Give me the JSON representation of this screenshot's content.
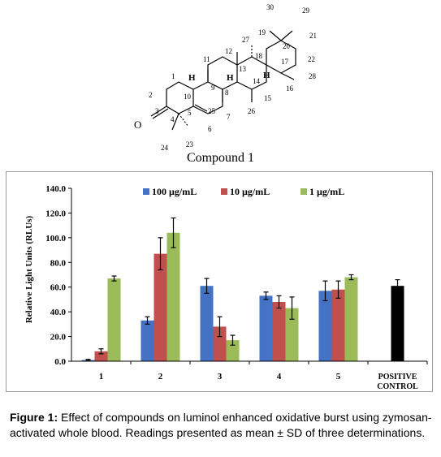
{
  "structure": {
    "compound_label": "Compound 1",
    "atom_numbers": [
      "1",
      "2",
      "3",
      "4",
      "5",
      "6",
      "7",
      "8",
      "9",
      "10",
      "11",
      "12",
      "13",
      "14",
      "15",
      "16",
      "17",
      "18",
      "19",
      "20",
      "21",
      "22",
      "23",
      "24",
      "25",
      "26",
      "27",
      "28",
      "29",
      "30"
    ],
    "h_labels": [
      "H",
      "H",
      "H"
    ],
    "oxygen_label": "O"
  },
  "chart_data": {
    "type": "bar",
    "title": "",
    "xlabel": "",
    "ylabel": "Relative Light Units (RLUs)",
    "ylim": [
      0,
      140
    ],
    "yticks": [
      "0.0",
      "20.0",
      "40.0",
      "60.0",
      "80.0",
      "100.0",
      "120.0",
      "140.0"
    ],
    "categories": [
      "1",
      "2",
      "3",
      "4",
      "5",
      "POSITIVE|CONTROL"
    ],
    "legend_position": "top",
    "grid": false,
    "series": [
      {
        "name": "100 µg/mL",
        "color": "#4472c4",
        "values": [
          1,
          33,
          61,
          53,
          57,
          null
        ],
        "errors": [
          0.5,
          3,
          6,
          3,
          8,
          null
        ]
      },
      {
        "name": "10 µg/mL",
        "color": "#c0504d",
        "values": [
          8,
          87,
          28,
          48,
          58,
          null
        ],
        "errors": [
          2,
          13,
          8,
          5,
          7,
          null
        ]
      },
      {
        "name": "1 µg/mL",
        "color": "#9bbb59",
        "values": [
          67,
          104,
          17,
          43,
          68,
          null
        ],
        "errors": [
          2,
          12,
          4,
          9,
          2,
          null
        ]
      },
      {
        "name": "",
        "color": "#000000",
        "values": [
          null,
          null,
          null,
          null,
          null,
          61
        ],
        "errors": [
          null,
          null,
          null,
          null,
          null,
          5
        ]
      }
    ]
  },
  "caption": {
    "label": "Figure 1:",
    "text": " Effect of compounds on luminol enhanced oxidative burst using zymosan-activated whole blood. Readings presented as mean ± SD of three determinations."
  }
}
